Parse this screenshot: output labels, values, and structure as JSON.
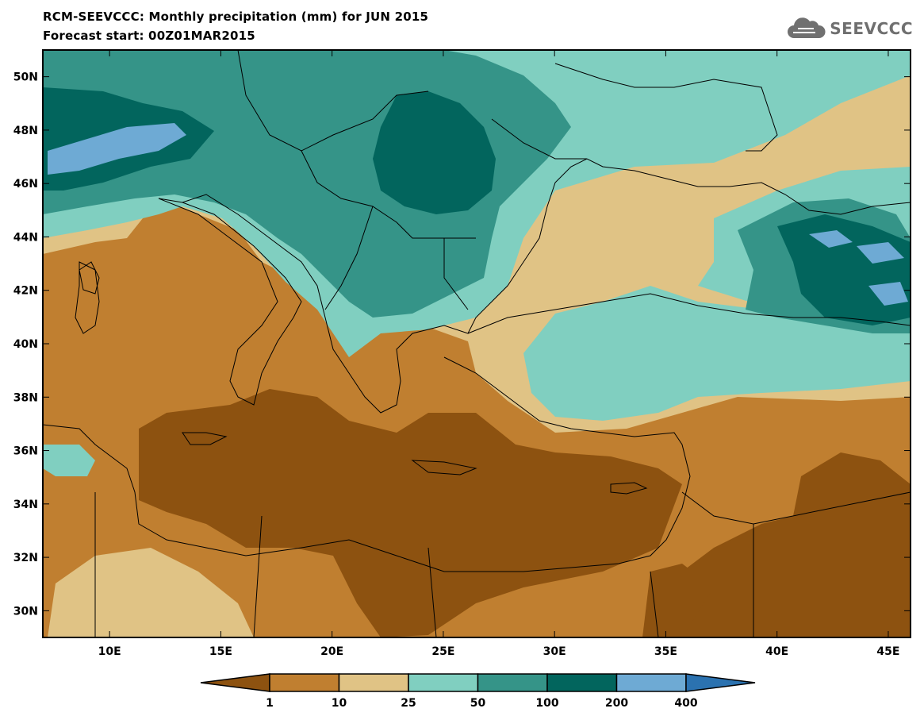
{
  "header": {
    "title": "RCM-SEEVCCC: Monthly precipitation (mm) for JUN 2015",
    "subtitle": "Forecast start: 00Z01MAR2015"
  },
  "logo": {
    "text": "SEEVCCC",
    "icon": "cloud-icon",
    "color": "#707070"
  },
  "map": {
    "lon_range": [
      7,
      46
    ],
    "lat_range": [
      29,
      51
    ],
    "lat_ticks": [
      {
        "value": 50,
        "label": "50N"
      },
      {
        "value": 48,
        "label": "48N"
      },
      {
        "value": 46,
        "label": "46N"
      },
      {
        "value": 44,
        "label": "44N"
      },
      {
        "value": 42,
        "label": "42N"
      },
      {
        "value": 40,
        "label": "40N"
      },
      {
        "value": 38,
        "label": "38N"
      },
      {
        "value": 36,
        "label": "36N"
      },
      {
        "value": 34,
        "label": "34N"
      },
      {
        "value": 32,
        "label": "32N"
      },
      {
        "value": 30,
        "label": "30N"
      }
    ],
    "lon_ticks": [
      {
        "value": 10,
        "label": "10E"
      },
      {
        "value": 15,
        "label": "15E"
      },
      {
        "value": 20,
        "label": "20E"
      },
      {
        "value": 25,
        "label": "25E"
      },
      {
        "value": 30,
        "label": "30E"
      },
      {
        "value": 35,
        "label": "35E"
      },
      {
        "value": 40,
        "label": "40E"
      },
      {
        "value": 45,
        "label": "45E"
      }
    ]
  },
  "legend": {
    "colors": [
      "#8d5210",
      "#c07f30",
      "#e0c385",
      "#80cfc0",
      "#359488",
      "#02655d",
      "#6eaad4",
      "#2b72b0"
    ],
    "labels": [
      "1",
      "10",
      "25",
      "50",
      "100",
      "200",
      "400"
    ]
  }
}
